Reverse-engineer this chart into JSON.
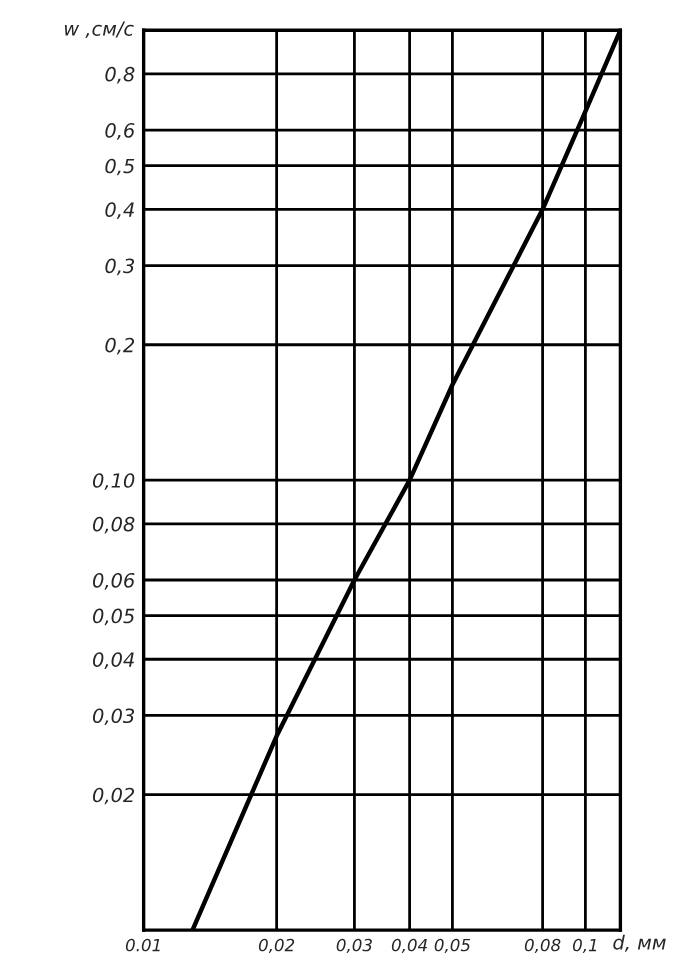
{
  "chart_data": {
    "type": "line",
    "xlabel": "d, мм",
    "ylabel": "w ,см/с",
    "x": [
      0.0129,
      0.02,
      0.03,
      0.04,
      0.05,
      0.08,
      0.1,
      0.12
    ],
    "series": [
      {
        "color": "#000000",
        "values": [
          0.01,
          0.027,
          0.06,
          0.1,
          0.163,
          0.4,
          0.66,
          1.0
        ]
      }
    ],
    "log": "xy",
    "grid": true,
    "marker": "none",
    "line_style": "solid",
    "xlim": [
      0.01,
      0.12
    ],
    "ylim": [
      0.01,
      1
    ],
    "xticks": [
      {
        "value": 0.01,
        "label": "0.01"
      },
      {
        "value": 0.02,
        "label": "0,02"
      },
      {
        "value": 0.03,
        "label": "0,03"
      },
      {
        "value": 0.04,
        "label": "0,04"
      },
      {
        "value": 0.05,
        "label": "0,05"
      },
      {
        "value": 0.08,
        "label": "0,08"
      },
      {
        "value": 0.1,
        "label": "0,1"
      }
    ],
    "yticks": [
      {
        "value": 0.02,
        "label": "0,02"
      },
      {
        "value": 0.03,
        "label": "0,03"
      },
      {
        "value": 0.04,
        "label": "0,04"
      },
      {
        "value": 0.05,
        "label": "0,05"
      },
      {
        "value": 0.06,
        "label": "0,06"
      },
      {
        "value": 0.08,
        "label": "0,08"
      },
      {
        "value": 0.1,
        "label": "0,10"
      },
      {
        "value": 0.2,
        "label": "0,2"
      },
      {
        "value": 0.3,
        "label": "0,3"
      },
      {
        "value": 0.4,
        "label": "0,4"
      },
      {
        "value": 0.5,
        "label": "0,5"
      },
      {
        "value": 0.6,
        "label": "0,6"
      },
      {
        "value": 0.8,
        "label": "0,8"
      }
    ]
  }
}
